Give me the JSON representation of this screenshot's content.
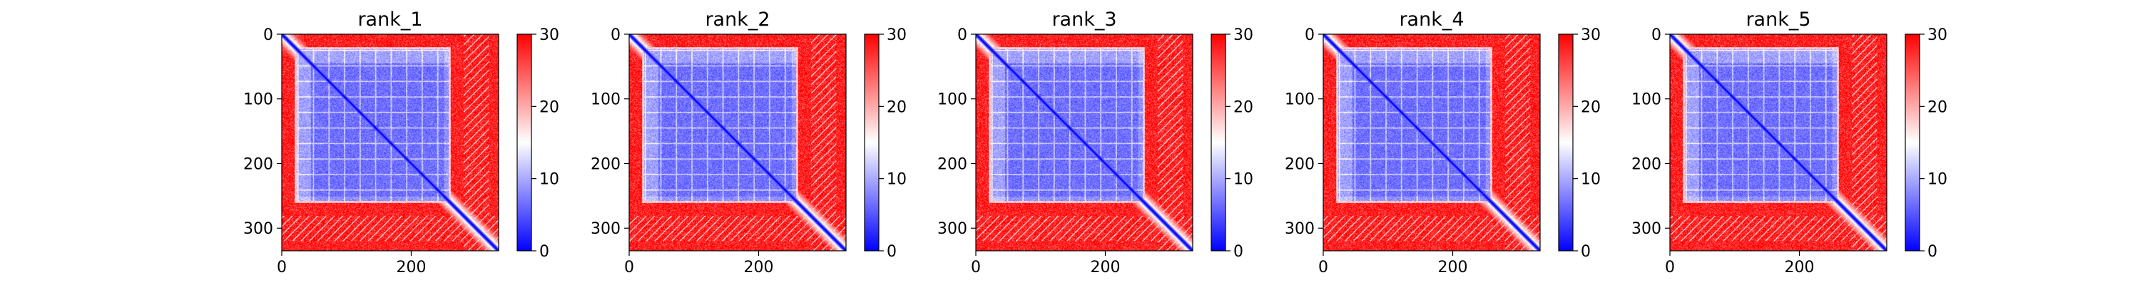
{
  "figure": {
    "background": "#ffffff"
  },
  "colormap": {
    "name": "bwr",
    "low": "#0000ff",
    "mid": "#ffffff",
    "high": "#ff0000"
  },
  "chart_data": [
    {
      "type": "heatmap",
      "title": "rank_1",
      "xlabel": "",
      "ylabel": "",
      "n": 335,
      "xlim": [
        0,
        335
      ],
      "ylim": [
        335,
        0
      ],
      "x_ticks": [
        0,
        200
      ],
      "y_ticks": [
        0,
        100,
        200,
        300
      ],
      "colorbar": {
        "min": 0,
        "max": 30,
        "ticks": [
          0,
          10,
          20,
          30
        ]
      },
      "blocks": {
        "diagonal_band": [
          0,
          335
        ],
        "core_domain": [
          20,
          260
        ],
        "inner_groove": [
          45,
          250
        ],
        "tail_stripes": [
          280,
          320
        ]
      }
    },
    {
      "type": "heatmap",
      "title": "rank_2",
      "xlabel": "",
      "ylabel": "",
      "n": 335,
      "xlim": [
        0,
        335
      ],
      "ylim": [
        335,
        0
      ],
      "x_ticks": [
        0,
        200
      ],
      "y_ticks": [
        0,
        100,
        200,
        300
      ],
      "colorbar": {
        "min": 0,
        "max": 30,
        "ticks": [
          0,
          10,
          20,
          30
        ]
      },
      "blocks": {
        "diagonal_band": [
          0,
          335
        ],
        "core_domain": [
          20,
          260
        ],
        "inner_groove": [
          45,
          250
        ],
        "tail_stripes": [
          280,
          320
        ]
      }
    },
    {
      "type": "heatmap",
      "title": "rank_3",
      "xlabel": "",
      "ylabel": "",
      "n": 335,
      "xlim": [
        0,
        335
      ],
      "ylim": [
        335,
        0
      ],
      "x_ticks": [
        0,
        200
      ],
      "y_ticks": [
        0,
        100,
        200,
        300
      ],
      "colorbar": {
        "min": 0,
        "max": 30,
        "ticks": [
          0,
          10,
          20,
          30
        ]
      },
      "blocks": {
        "diagonal_band": [
          0,
          335
        ],
        "core_domain": [
          20,
          260
        ],
        "inner_groove": [
          45,
          250
        ],
        "tail_stripes": [
          280,
          320
        ]
      }
    },
    {
      "type": "heatmap",
      "title": "rank_4",
      "xlabel": "",
      "ylabel": "",
      "n": 335,
      "xlim": [
        0,
        335
      ],
      "ylim": [
        335,
        0
      ],
      "x_ticks": [
        0,
        200
      ],
      "y_ticks": [
        0,
        100,
        200,
        300
      ],
      "colorbar": {
        "min": 0,
        "max": 30,
        "ticks": [
          0,
          10,
          20,
          30
        ]
      },
      "blocks": {
        "diagonal_band": [
          0,
          335
        ],
        "core_domain": [
          20,
          260
        ],
        "inner_groove": [
          45,
          250
        ],
        "tail_stripes": [
          280,
          320
        ]
      }
    },
    {
      "type": "heatmap",
      "title": "rank_5",
      "xlabel": "",
      "ylabel": "",
      "n": 335,
      "xlim": [
        0,
        335
      ],
      "ylim": [
        335,
        0
      ],
      "x_ticks": [
        0,
        200
      ],
      "y_ticks": [
        0,
        100,
        200,
        300
      ],
      "colorbar": {
        "min": 0,
        "max": 30,
        "ticks": [
          0,
          10,
          20,
          30
        ]
      },
      "blocks": {
        "diagonal_band": [
          0,
          335
        ],
        "core_domain": [
          20,
          260
        ],
        "inner_groove": [
          45,
          250
        ],
        "tail_stripes": [
          280,
          320
        ]
      }
    }
  ]
}
